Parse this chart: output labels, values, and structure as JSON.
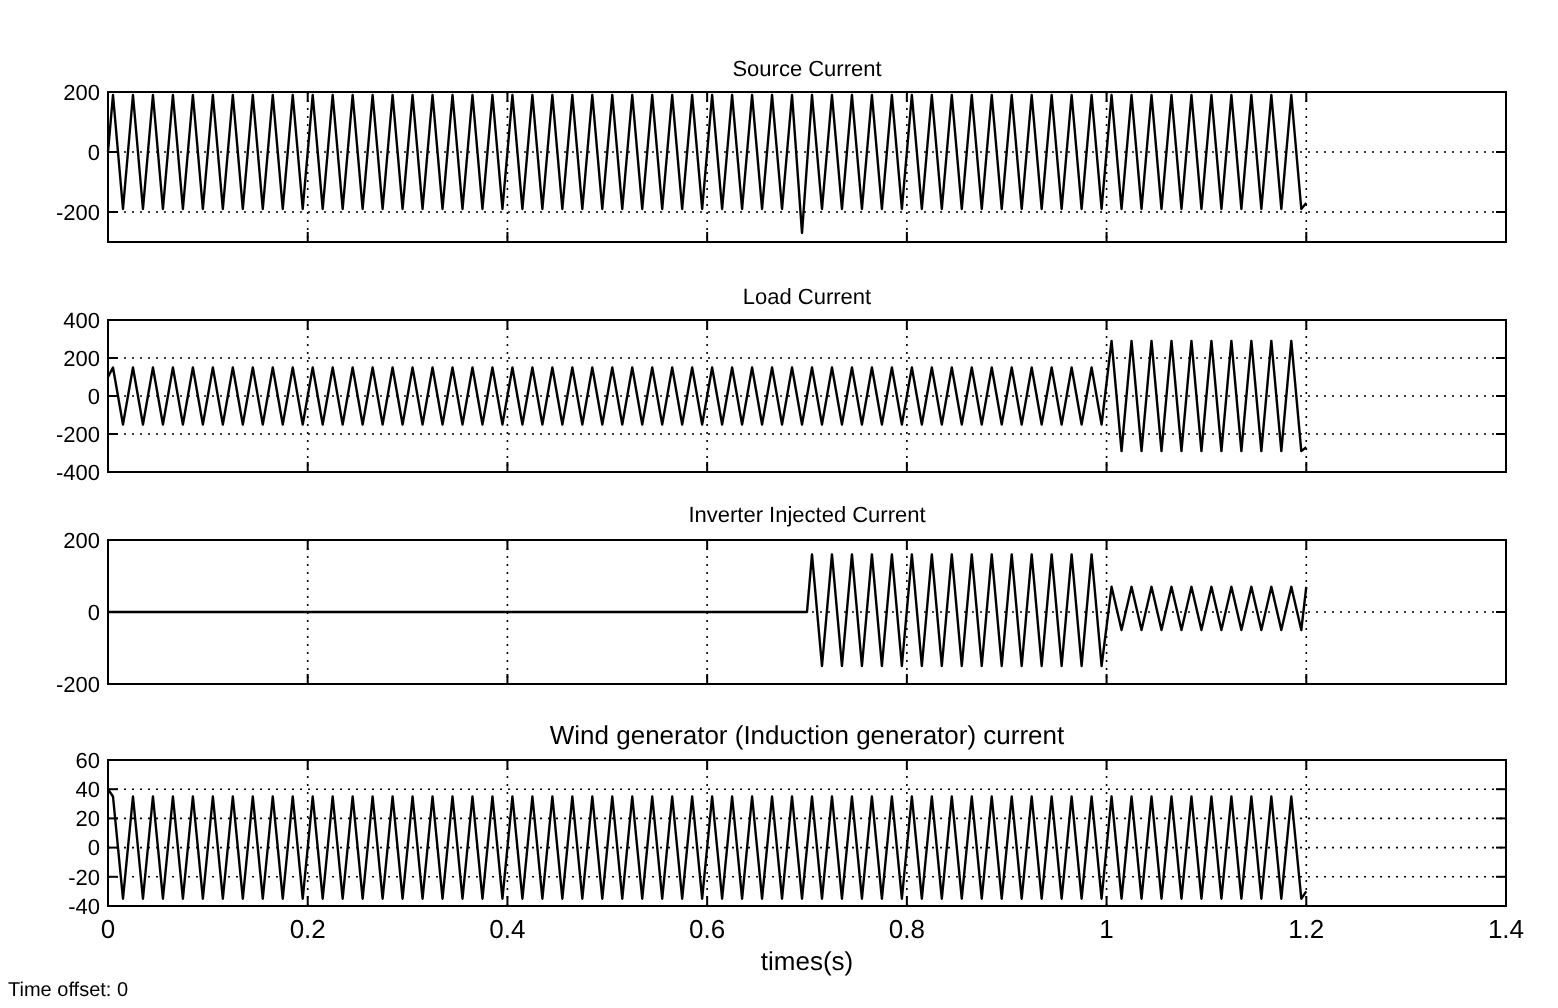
{
  "chart_data": [
    {
      "type": "line",
      "title": "Source Current",
      "xlim": [
        0,
        1.4
      ],
      "xticks": [
        0,
        0.2,
        0.4,
        0.6,
        0.8,
        1,
        1.2,
        1.4
      ],
      "ylim": [
        -300,
        200
      ],
      "yticks": [
        -200,
        0,
        200
      ],
      "grid": true,
      "tick_labels": "y",
      "x": [
        0,
        0.005,
        0.015,
        0.025,
        0.035,
        0.045,
        0.055,
        0.065,
        0.075,
        0.085,
        0.095,
        0.105,
        0.115,
        0.125,
        0.135,
        0.145,
        0.155,
        0.165,
        0.175,
        0.185,
        0.195,
        0.205,
        0.215,
        0.225,
        0.235,
        0.245,
        0.255,
        0.265,
        0.275,
        0.285,
        0.295,
        0.305,
        0.315,
        0.325,
        0.335,
        0.345,
        0.355,
        0.365,
        0.375,
        0.385,
        0.395,
        0.405,
        0.415,
        0.425,
        0.435,
        0.445,
        0.455,
        0.465,
        0.475,
        0.485,
        0.495,
        0.505,
        0.515,
        0.525,
        0.535,
        0.545,
        0.555,
        0.565,
        0.575,
        0.585,
        0.595,
        0.605,
        0.615,
        0.625,
        0.635,
        0.645,
        0.655,
        0.665,
        0.675,
        0.685,
        0.695,
        0.705,
        0.715,
        0.725,
        0.735,
        0.745,
        0.755,
        0.765,
        0.775,
        0.785,
        0.795,
        0.805,
        0.815,
        0.825,
        0.835,
        0.845,
        0.855,
        0.865,
        0.875,
        0.885,
        0.895,
        0.905,
        0.915,
        0.925,
        0.935,
        0.945,
        0.955,
        0.965,
        0.975,
        0.985,
        0.995,
        1.005,
        1.015,
        1.025,
        1.035,
        1.045,
        1.055,
        1.065,
        1.075,
        1.085,
        1.095,
        1.105,
        1.115,
        1.125,
        1.135,
        1.145,
        1.155,
        1.165,
        1.175,
        1.185,
        1.195,
        1.2
      ],
      "series": [
        {
          "color": "#000000",
          "values": [
            0,
            190,
            -190,
            190,
            -190,
            190,
            -190,
            190,
            -190,
            190,
            -190,
            190,
            -190,
            190,
            -190,
            190,
            -190,
            190,
            -190,
            190,
            -190,
            190,
            -190,
            190,
            -190,
            190,
            -190,
            190,
            -190,
            190,
            -190,
            190,
            -190,
            190,
            -190,
            190,
            -190,
            190,
            -190,
            190,
            -190,
            190,
            -190,
            190,
            -190,
            190,
            -190,
            190,
            -190,
            190,
            -190,
            190,
            -190,
            190,
            -190,
            190,
            -190,
            190,
            -190,
            190,
            -190,
            190,
            -190,
            190,
            -190,
            190,
            -190,
            190,
            -190,
            190,
            -270,
            190,
            -190,
            190,
            -190,
            190,
            -190,
            190,
            -190,
            190,
            -190,
            190,
            -190,
            190,
            -190,
            190,
            -190,
            190,
            -190,
            190,
            -190,
            190,
            -190,
            190,
            -190,
            190,
            -190,
            190,
            -190,
            190,
            -190,
            190,
            -190,
            190,
            -190,
            190,
            -190,
            190,
            -190,
            190,
            -190,
            190,
            -190,
            190,
            -190,
            190,
            -190,
            190,
            -190,
            190,
            -190,
            -170
          ]
        }
      ]
    },
    {
      "type": "line",
      "title": "Load Current",
      "xlim": [
        0,
        1.4
      ],
      "xticks": [
        0,
        0.2,
        0.4,
        0.6,
        0.8,
        1,
        1.2,
        1.4
      ],
      "ylim": [
        -400,
        400
      ],
      "yticks": [
        -400,
        -200,
        0,
        200,
        400
      ],
      "grid": true,
      "tick_labels": "y",
      "x": [
        0,
        0.005,
        0.015,
        0.025,
        0.035,
        0.045,
        0.055,
        0.065,
        0.075,
        0.085,
        0.095,
        0.105,
        0.115,
        0.125,
        0.135,
        0.145,
        0.155,
        0.165,
        0.175,
        0.185,
        0.195,
        0.205,
        0.215,
        0.225,
        0.235,
        0.245,
        0.255,
        0.265,
        0.275,
        0.285,
        0.295,
        0.305,
        0.315,
        0.325,
        0.335,
        0.345,
        0.355,
        0.365,
        0.375,
        0.385,
        0.395,
        0.405,
        0.415,
        0.425,
        0.435,
        0.445,
        0.455,
        0.465,
        0.475,
        0.485,
        0.495,
        0.505,
        0.515,
        0.525,
        0.535,
        0.545,
        0.555,
        0.565,
        0.575,
        0.585,
        0.595,
        0.605,
        0.615,
        0.625,
        0.635,
        0.645,
        0.655,
        0.665,
        0.675,
        0.685,
        0.695,
        0.705,
        0.715,
        0.725,
        0.735,
        0.745,
        0.755,
        0.765,
        0.775,
        0.785,
        0.795,
        0.805,
        0.815,
        0.825,
        0.835,
        0.845,
        0.855,
        0.865,
        0.875,
        0.885,
        0.895,
        0.905,
        0.915,
        0.925,
        0.935,
        0.945,
        0.955,
        0.965,
        0.975,
        0.985,
        0.995,
        1.005,
        1.015,
        1.025,
        1.035,
        1.045,
        1.055,
        1.065,
        1.075,
        1.085,
        1.095,
        1.105,
        1.115,
        1.125,
        1.135,
        1.145,
        1.155,
        1.165,
        1.175,
        1.185,
        1.195,
        1.2
      ],
      "series": [
        {
          "color": "#000000",
          "values": [
            100,
            150,
            -150,
            150,
            -150,
            150,
            -150,
            150,
            -150,
            150,
            -150,
            150,
            -150,
            150,
            -150,
            150,
            -150,
            150,
            -150,
            150,
            -150,
            150,
            -150,
            150,
            -150,
            150,
            -150,
            150,
            -150,
            150,
            -150,
            150,
            -150,
            150,
            -150,
            150,
            -150,
            150,
            -150,
            150,
            -150,
            150,
            -150,
            150,
            -150,
            150,
            -150,
            150,
            -150,
            150,
            -150,
            150,
            -150,
            150,
            -150,
            150,
            -150,
            150,
            -150,
            150,
            -150,
            150,
            -150,
            150,
            -150,
            150,
            -150,
            150,
            -150,
            150,
            -150,
            150,
            -150,
            150,
            -150,
            150,
            -150,
            150,
            -150,
            150,
            -150,
            150,
            -150,
            150,
            -150,
            150,
            -150,
            150,
            -150,
            150,
            -150,
            150,
            -150,
            150,
            -150,
            150,
            -150,
            150,
            -150,
            150,
            -150,
            290,
            -290,
            290,
            -290,
            290,
            -290,
            290,
            -290,
            290,
            -290,
            290,
            -290,
            290,
            -290,
            290,
            -290,
            290,
            -290,
            290,
            -290,
            -270
          ]
        }
      ]
    },
    {
      "type": "line",
      "title": "Inverter Injected Current",
      "xlim": [
        0,
        1.4
      ],
      "xticks": [
        0,
        0.2,
        0.4,
        0.6,
        0.8,
        1,
        1.2,
        1.4
      ],
      "ylim": [
        -200,
        200
      ],
      "yticks": [
        -200,
        0,
        200
      ],
      "grid": true,
      "tick_labels": "y",
      "x": [
        0,
        0.7,
        0.705,
        0.715,
        0.725,
        0.735,
        0.745,
        0.755,
        0.765,
        0.775,
        0.785,
        0.795,
        0.805,
        0.815,
        0.825,
        0.835,
        0.845,
        0.855,
        0.865,
        0.875,
        0.885,
        0.895,
        0.905,
        0.915,
        0.925,
        0.935,
        0.945,
        0.955,
        0.965,
        0.975,
        0.985,
        0.995,
        1.005,
        1.015,
        1.025,
        1.035,
        1.045,
        1.055,
        1.065,
        1.075,
        1.085,
        1.095,
        1.105,
        1.115,
        1.125,
        1.135,
        1.145,
        1.155,
        1.165,
        1.175,
        1.185,
        1.195,
        1.2
      ],
      "series": [
        {
          "color": "#000000",
          "values": [
            0,
            0,
            160,
            -150,
            160,
            -150,
            160,
            -150,
            160,
            -150,
            160,
            -150,
            160,
            -150,
            160,
            -150,
            160,
            -150,
            160,
            -150,
            160,
            -150,
            160,
            -150,
            160,
            -150,
            160,
            -150,
            160,
            -150,
            160,
            -150,
            70,
            -50,
            70,
            -50,
            70,
            -50,
            70,
            -50,
            70,
            -50,
            70,
            -50,
            70,
            -50,
            70,
            -50,
            70,
            -50,
            70,
            -50,
            70
          ]
        }
      ]
    },
    {
      "type": "line",
      "title": "Wind generator (Induction generator) current",
      "xlabel": "times(s)",
      "annotations": [
        "Time offset:  0"
      ],
      "xlim": [
        0,
        1.4
      ],
      "xticks": [
        0,
        0.2,
        0.4,
        0.6,
        0.8,
        1,
        1.2,
        1.4
      ],
      "ylim": [
        -40,
        60
      ],
      "yticks": [
        -40,
        -20,
        0,
        20,
        40,
        60
      ],
      "grid": true,
      "x": [
        0,
        0.005,
        0.015,
        0.025,
        0.035,
        0.045,
        0.055,
        0.065,
        0.075,
        0.085,
        0.095,
        0.105,
        0.115,
        0.125,
        0.135,
        0.145,
        0.155,
        0.165,
        0.175,
        0.185,
        0.195,
        0.205,
        0.215,
        0.225,
        0.235,
        0.245,
        0.255,
        0.265,
        0.275,
        0.285,
        0.295,
        0.305,
        0.315,
        0.325,
        0.335,
        0.345,
        0.355,
        0.365,
        0.375,
        0.385,
        0.395,
        0.405,
        0.415,
        0.425,
        0.435,
        0.445,
        0.455,
        0.465,
        0.475,
        0.485,
        0.495,
        0.505,
        0.515,
        0.525,
        0.535,
        0.545,
        0.555,
        0.565,
        0.575,
        0.585,
        0.595,
        0.605,
        0.615,
        0.625,
        0.635,
        0.645,
        0.655,
        0.665,
        0.675,
        0.685,
        0.695,
        0.705,
        0.715,
        0.725,
        0.735,
        0.745,
        0.755,
        0.765,
        0.775,
        0.785,
        0.795,
        0.805,
        0.815,
        0.825,
        0.835,
        0.845,
        0.855,
        0.865,
        0.875,
        0.885,
        0.895,
        0.905,
        0.915,
        0.925,
        0.935,
        0.945,
        0.955,
        0.965,
        0.975,
        0.985,
        0.995,
        1.005,
        1.015,
        1.025,
        1.035,
        1.045,
        1.055,
        1.065,
        1.075,
        1.085,
        1.095,
        1.105,
        1.115,
        1.125,
        1.135,
        1.145,
        1.155,
        1.165,
        1.175,
        1.185,
        1.195,
        1.2
      ],
      "series": [
        {
          "color": "#000000",
          "values": [
            40,
            35,
            -35,
            35,
            -35,
            35,
            -35,
            35,
            -35,
            35,
            -35,
            35,
            -35,
            35,
            -35,
            35,
            -35,
            35,
            -35,
            35,
            -35,
            35,
            -35,
            35,
            -35,
            35,
            -35,
            35,
            -35,
            35,
            -35,
            35,
            -35,
            35,
            -35,
            35,
            -35,
            35,
            -35,
            35,
            -35,
            35,
            -35,
            35,
            -35,
            35,
            -35,
            35,
            -35,
            35,
            -35,
            35,
            -35,
            35,
            -35,
            35,
            -35,
            35,
            -35,
            35,
            -35,
            35,
            -35,
            35,
            -35,
            35,
            -35,
            35,
            -35,
            35,
            -35,
            35,
            -35,
            35,
            -35,
            35,
            -35,
            35,
            -35,
            35,
            -35,
            35,
            -35,
            35,
            -35,
            35,
            -35,
            35,
            -35,
            35,
            -35,
            35,
            -35,
            35,
            -35,
            35,
            -35,
            35,
            -35,
            35,
            -35,
            35,
            -35,
            35,
            -35,
            35,
            -35,
            35,
            -35,
            35,
            -35,
            35,
            -35,
            35,
            -35,
            35,
            -35,
            35,
            -35,
            35,
            -35,
            -30
          ]
        }
      ]
    }
  ]
}
